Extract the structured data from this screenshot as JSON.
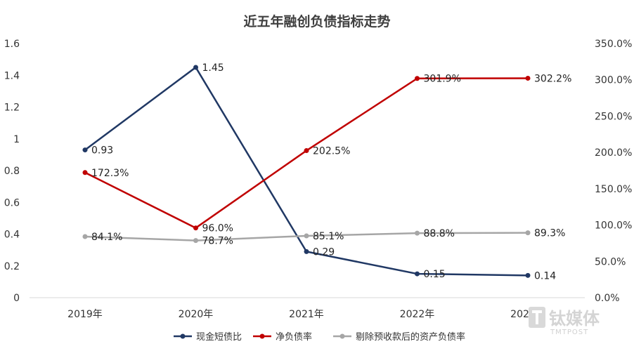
{
  "chart_data": {
    "type": "line",
    "title": "近五年融创负债指标走势",
    "categories": [
      "2019年",
      "2020年",
      "2021年",
      "2022年",
      "2023年"
    ],
    "left_axis": {
      "ylim": [
        0,
        1.6
      ],
      "ticks": [
        "0",
        "0.2",
        "0.4",
        "0.6",
        "0.8",
        "1",
        "1.2",
        "1.4",
        "1.6"
      ],
      "tick_values": [
        0,
        0.2,
        0.4,
        0.6,
        0.8,
        1,
        1.2,
        1.4,
        1.6
      ]
    },
    "right_axis": {
      "ylim": [
        0,
        350
      ],
      "ticks": [
        "0.0%",
        "50.0%",
        "100.0%",
        "150.0%",
        "200.0%",
        "250.0%",
        "300.0%",
        "350.0%"
      ],
      "tick_values": [
        0,
        50,
        100,
        150,
        200,
        250,
        300,
        350
      ]
    },
    "series": [
      {
        "name": "现金短债比",
        "axis": "left",
        "color": "#203864",
        "values": [
          0.93,
          1.45,
          0.29,
          0.15,
          0.14
        ],
        "labels": [
          "0.93",
          "1.45",
          "0.29",
          "0.15",
          "0.14"
        ]
      },
      {
        "name": "净负债率",
        "axis": "right",
        "color": "#c00000",
        "values": [
          172.3,
          96.0,
          202.5,
          301.9,
          302.2
        ],
        "labels": [
          "172.3%",
          "96.0%",
          "202.5%",
          "301.9%",
          "302.2%"
        ]
      },
      {
        "name": "剔除预收款后的资产负债率",
        "axis": "right",
        "color": "#a6a6a6",
        "values": [
          84.1,
          78.7,
          85.1,
          88.8,
          89.3
        ],
        "labels": [
          "84.1%",
          "78.7%",
          "85.1%",
          "88.8%",
          "89.3%"
        ]
      }
    ],
    "legend_position": "bottom",
    "grid": false
  },
  "watermark": {
    "main": "钛媒体",
    "sub": "TMTPOST"
  }
}
